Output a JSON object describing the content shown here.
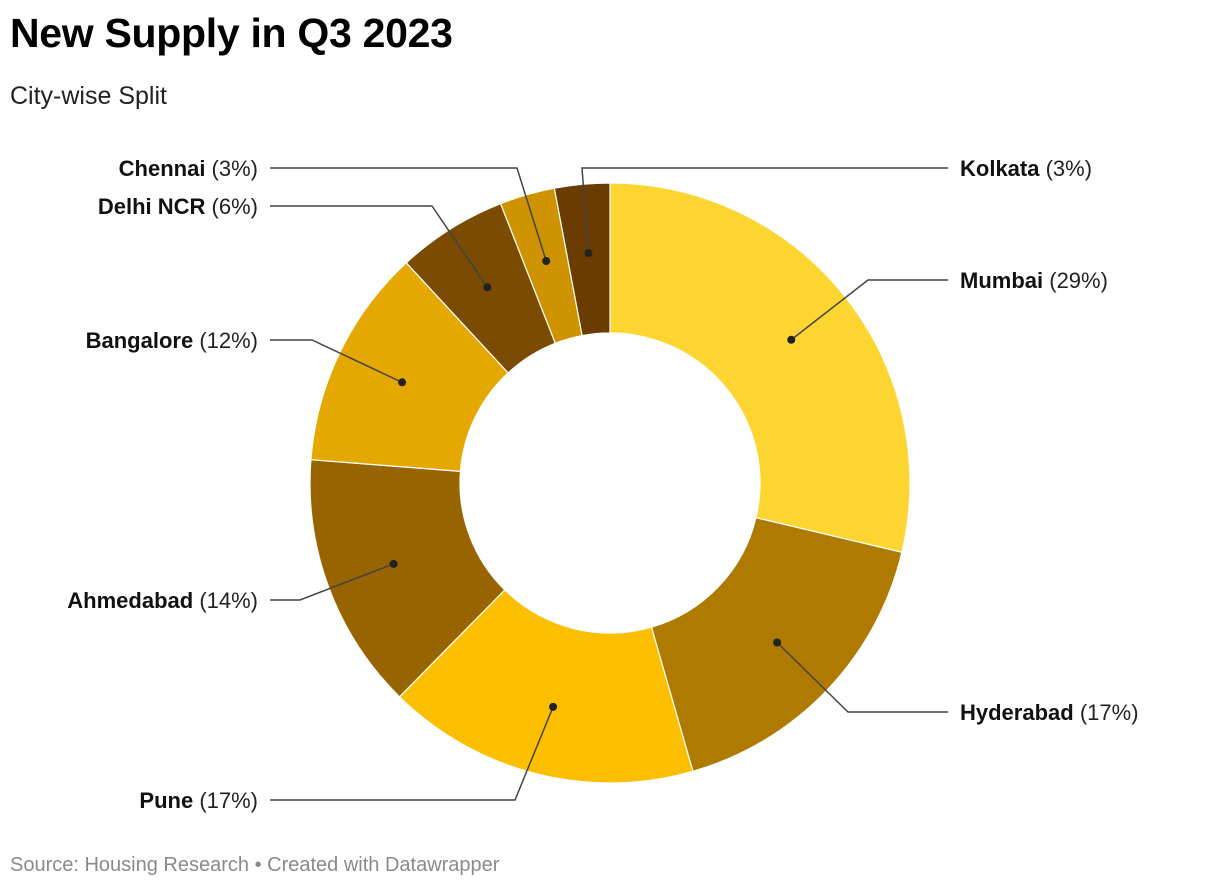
{
  "header": {
    "title": "New Supply in Q3 2023",
    "subtitle": "City-wise Split"
  },
  "footer": {
    "source": "Source: Housing Research • Created with Datawrapper"
  },
  "chart_data": {
    "type": "pie",
    "donut": true,
    "title": "New Supply in Q3 2023",
    "subtitle": "City-wise Split",
    "slices": [
      {
        "label": "Mumbai",
        "value": 29,
        "pct_label": "(29%)",
        "color": "#fdd530"
      },
      {
        "label": "Hyderabad",
        "value": 17,
        "pct_label": "(17%)",
        "color": "#af7a00"
      },
      {
        "label": "Pune",
        "value": 17,
        "pct_label": "(17%)",
        "color": "#fcbf00"
      },
      {
        "label": "Ahmedabad",
        "value": 14,
        "pct_label": "(14%)",
        "color": "#976400"
      },
      {
        "label": "Bangalore",
        "value": 12,
        "pct_label": "(12%)",
        "color": "#e5a800"
      },
      {
        "label": "Delhi NCR",
        "value": 6,
        "pct_label": "(6%)",
        "color": "#7a4b00"
      },
      {
        "label": "Chennai",
        "value": 3,
        "pct_label": "(3%)",
        "color": "#cf9300"
      },
      {
        "label": "Kolkata",
        "value": 3,
        "pct_label": "(3%)",
        "color": "#6b3c00"
      }
    ]
  }
}
